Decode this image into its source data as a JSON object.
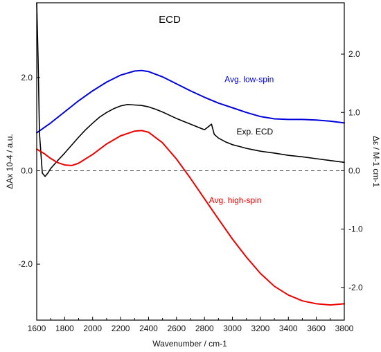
{
  "chart_data": {
    "type": "line",
    "title": "ECD",
    "xlabel": "Wavenumber / cm-1",
    "ylabel_left": "ΔAx 10-4 / a.u.",
    "ylabel_right": "Δε / M-1 cm-1",
    "xlim": [
      1600,
      3800
    ],
    "ylim_left": [
      -3.2,
      3.6
    ],
    "ylim_right": [
      -2.56,
      2.88
    ],
    "x_ticks": [
      1600,
      1800,
      2000,
      2200,
      2400,
      2600,
      2800,
      3000,
      3200,
      3400,
      3600,
      3800
    ],
    "y_ticks_left": [
      "-2.0",
      "0.0",
      "2.0"
    ],
    "y_ticks_left_values": [
      -2.0,
      0.0,
      2.0
    ],
    "y_ticks_right": [
      "-2.0",
      "-1.0",
      "0.0",
      "1.0",
      "2.0"
    ],
    "y_ticks_right_values": [
      -2.0,
      -1.0,
      0.0,
      1.0,
      2.0
    ],
    "zero_line": "dashed",
    "grid": false,
    "series": [
      {
        "name": "Avg. low-spin",
        "axis": "right",
        "color": "#0000dd",
        "x": [
          1600,
          1700,
          1800,
          1900,
          2000,
          2100,
          2200,
          2300,
          2350,
          2400,
          2500,
          2600,
          2700,
          2800,
          2900,
          3000,
          3100,
          3200,
          3300,
          3400,
          3500,
          3600,
          3700,
          3800
        ],
        "y": [
          0.65,
          0.82,
          1.01,
          1.2,
          1.37,
          1.52,
          1.64,
          1.71,
          1.72,
          1.7,
          1.61,
          1.49,
          1.37,
          1.26,
          1.16,
          1.08,
          1.0,
          0.93,
          0.89,
          0.88,
          0.88,
          0.87,
          0.85,
          0.82
        ]
      },
      {
        "name": "Exp. ECD",
        "axis": "left",
        "color": "#000000",
        "x": [
          1600,
          1610,
          1620,
          1640,
          1660,
          1680,
          1700,
          1750,
          1800,
          1850,
          1900,
          1950,
          2000,
          2050,
          2100,
          2150,
          2200,
          2250,
          2300,
          2350,
          2400,
          2450,
          2500,
          2550,
          2600,
          2650,
          2700,
          2750,
          2800,
          2830,
          2850,
          2870,
          2900,
          2950,
          3000,
          3050,
          3100,
          3150,
          3200,
          3300,
          3400,
          3500,
          3600,
          3700,
          3800
        ],
        "y": [
          3.6,
          2.4,
          0.8,
          -0.05,
          -0.12,
          -0.05,
          0.05,
          0.22,
          0.38,
          0.55,
          0.72,
          0.88,
          1.02,
          1.15,
          1.25,
          1.33,
          1.39,
          1.42,
          1.41,
          1.4,
          1.37,
          1.32,
          1.26,
          1.19,
          1.12,
          1.06,
          1.0,
          0.94,
          0.88,
          0.95,
          1.0,
          0.78,
          0.7,
          0.62,
          0.56,
          0.52,
          0.48,
          0.45,
          0.42,
          0.38,
          0.33,
          0.3,
          0.26,
          0.22,
          0.18
        ]
      },
      {
        "name": "Avg. high-spin",
        "axis": "right",
        "color": "#ee0000",
        "x": [
          1600,
          1650,
          1700,
          1750,
          1800,
          1850,
          1900,
          2000,
          2100,
          2200,
          2300,
          2350,
          2400,
          2500,
          2600,
          2700,
          2800,
          2900,
          3000,
          3100,
          3200,
          3300,
          3400,
          3500,
          3600,
          3700,
          3800
        ],
        "y": [
          0.37,
          0.3,
          0.21,
          0.14,
          0.1,
          0.09,
          0.13,
          0.28,
          0.46,
          0.6,
          0.68,
          0.69,
          0.66,
          0.48,
          0.2,
          -0.13,
          -0.48,
          -0.83,
          -1.17,
          -1.48,
          -1.76,
          -1.98,
          -2.13,
          -2.23,
          -2.28,
          -2.3,
          -2.28
        ]
      }
    ],
    "annotations": [
      {
        "text": "Avg. low-spin",
        "color": "#0000dd",
        "x": 3120,
        "y_right": 1.52
      },
      {
        "text": "Exp. ECD",
        "color": "#000000",
        "x": 3160,
        "y_left": 0.78
      },
      {
        "text": "Avg. high-spin",
        "color": "#ee0000",
        "x": 3020,
        "y_right": -0.55
      }
    ]
  }
}
